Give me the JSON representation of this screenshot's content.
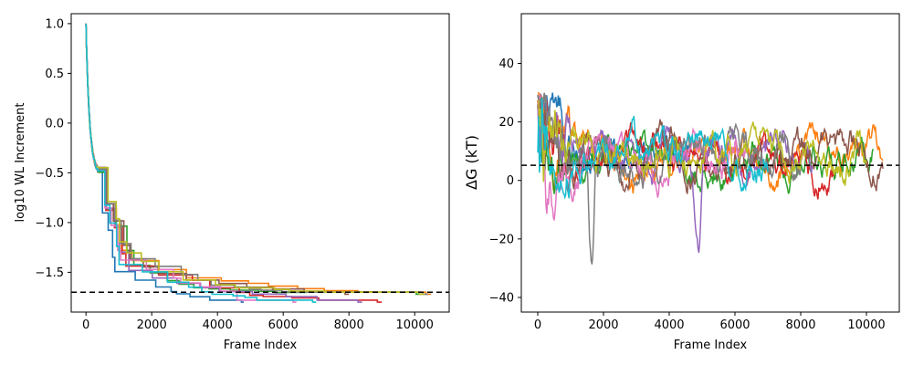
{
  "chart_data": [
    {
      "type": "line",
      "xlabel": "Frame Index",
      "ylabel": "log10 WL Increment",
      "xlim": [
        -450,
        11050
      ],
      "ylim": [
        -1.9,
        1.1
      ],
      "xticks": [
        0,
        2000,
        4000,
        6000,
        8000,
        10000
      ],
      "xtick_labels": [
        "0",
        "2000",
        "4000",
        "6000",
        "8000",
        "10000"
      ],
      "yticks": [
        1.0,
        0.5,
        0.0,
        -0.5,
        -1.0,
        -1.5
      ],
      "ytick_labels": [
        "1.0",
        "0.5",
        "0.0",
        "−0.5",
        "−1.0",
        "−1.5"
      ],
      "reference_line": {
        "y": -1.7,
        "style": "dashed",
        "color": "#000000"
      },
      "series": [
        {
          "color": "#1f77b4",
          "final_x": 4800,
          "final_y": -1.8
        },
        {
          "color": "#ff7f0e",
          "final_x": 10500,
          "final_y": -1.72
        },
        {
          "color": "#2ca02c",
          "final_x": 10200,
          "final_y": -1.72
        },
        {
          "color": "#d62728",
          "final_x": 9000,
          "final_y": -1.8
        },
        {
          "color": "#9467bd",
          "final_x": 8400,
          "final_y": -1.8
        },
        {
          "color": "#8c564b",
          "final_x": 8000,
          "final_y": -1.72
        },
        {
          "color": "#e377c2",
          "final_x": 6400,
          "final_y": -1.8
        },
        {
          "color": "#7f7f7f",
          "final_x": 10400,
          "final_y": -1.72
        },
        {
          "color": "#bcbd22",
          "final_x": 10300,
          "final_y": -1.72
        },
        {
          "color": "#17becf",
          "final_x": 7000,
          "final_y": -1.8
        }
      ]
    },
    {
      "type": "line",
      "xlabel": "Frame Index",
      "ylabel": "ΔG (kT)",
      "xlim": [
        -500,
        11000
      ],
      "ylim": [
        -45,
        57
      ],
      "xticks": [
        0,
        2000,
        4000,
        6000,
        8000,
        10000
      ],
      "xtick_labels": [
        "0",
        "2000",
        "4000",
        "6000",
        "8000",
        "10000"
      ],
      "yticks": [
        40,
        20,
        0,
        -20,
        -40
      ],
      "ytick_labels": [
        "40",
        "20",
        "0",
        "−20",
        "−40"
      ],
      "reference_line": {
        "y": 5.2,
        "style": "dashed",
        "color": "#000000"
      },
      "series": [
        {
          "color": "#1f77b4",
          "length": 4800
        },
        {
          "color": "#ff7f0e",
          "length": 10500
        },
        {
          "color": "#2ca02c",
          "length": 10200
        },
        {
          "color": "#d62728",
          "length": 9000
        },
        {
          "color": "#9467bd",
          "length": 8400
        },
        {
          "color": "#8c564b",
          "length": 10500
        },
        {
          "color": "#e377c2",
          "length": 6400
        },
        {
          "color": "#7f7f7f",
          "length": 8000
        },
        {
          "color": "#bcbd22",
          "length": 10000
        },
        {
          "color": "#17becf",
          "length": 7000
        }
      ]
    }
  ]
}
